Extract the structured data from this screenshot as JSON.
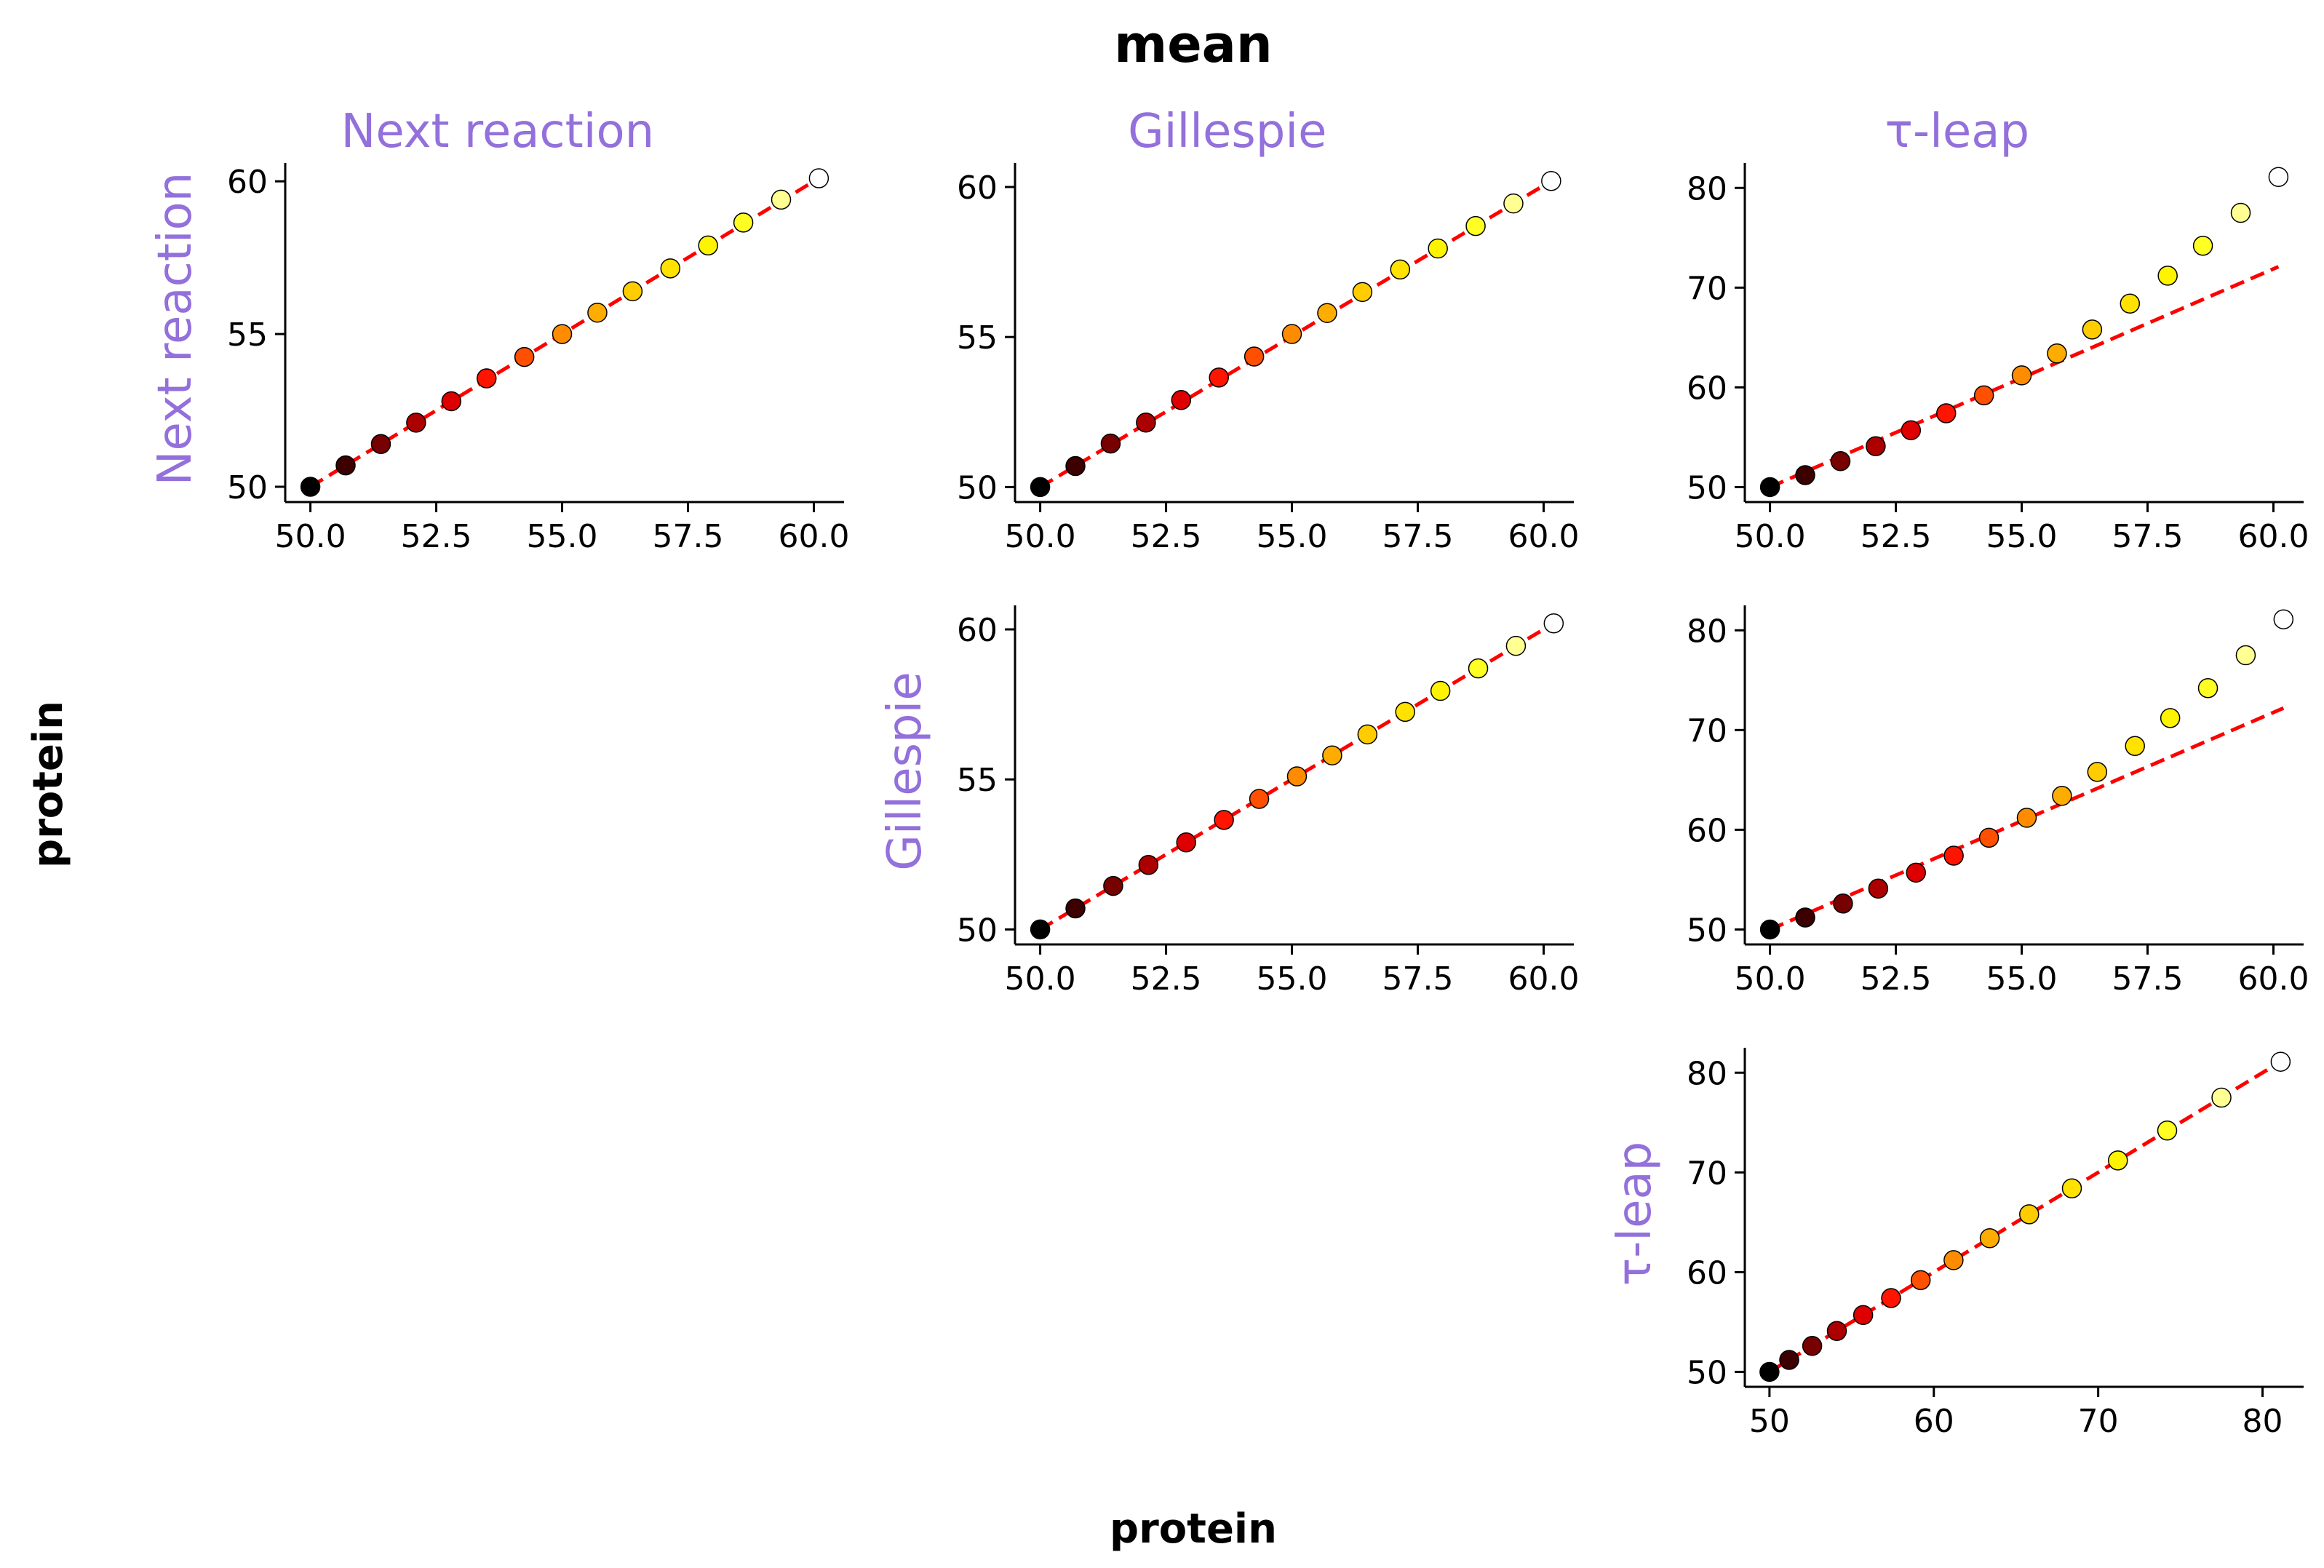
{
  "figure": {
    "title": "mean",
    "xlabel": "protein",
    "ylabel": "protein",
    "label_color": "#9370DB",
    "identity_line_color": "#ff0000",
    "colormap": [
      "#000000",
      "#8b0000",
      "#ff0000",
      "#ff8c00",
      "#ffd700",
      "#ffff00",
      "#ffffff"
    ]
  },
  "chart_data": [
    {
      "type": "scatter",
      "col_title": "Next reaction",
      "row_title": "Next reaction",
      "xlim": [
        49.5,
        60.6
      ],
      "ylim": [
        49.5,
        60.6
      ],
      "xticks": [
        50,
        52.5,
        55,
        57.5,
        60
      ],
      "xtick_labels": [
        "50.0",
        "52.5",
        "55.0",
        "57.5",
        "60.0"
      ],
      "yticks": [
        50,
        55,
        60
      ],
      "ytick_labels": [
        "50",
        "55",
        "60"
      ],
      "x": [
        50.0,
        50.7,
        51.4,
        52.1,
        52.8,
        53.5,
        54.25,
        55.0,
        55.7,
        56.4,
        57.15,
        57.9,
        58.6,
        59.35,
        60.1
      ],
      "y": [
        50.0,
        50.7,
        51.4,
        52.1,
        52.8,
        53.55,
        54.25,
        55.0,
        55.7,
        56.4,
        57.15,
        57.9,
        58.65,
        59.4,
        60.1
      ],
      "identity": [
        [
          50.0,
          50.0
        ],
        [
          60.1,
          60.1
        ]
      ]
    },
    {
      "type": "scatter",
      "col_title": "Gillespie",
      "row_title": "",
      "xlim": [
        49.5,
        60.6
      ],
      "ylim": [
        49.5,
        60.8
      ],
      "xticks": [
        50,
        52.5,
        55,
        57.5,
        60
      ],
      "xtick_labels": [
        "50.0",
        "52.5",
        "55.0",
        "57.5",
        "60.0"
      ],
      "yticks": [
        50,
        55,
        60
      ],
      "ytick_labels": [
        "50",
        "55",
        "60"
      ],
      "x": [
        50.0,
        50.7,
        51.4,
        52.1,
        52.8,
        53.55,
        54.25,
        55.0,
        55.7,
        56.4,
        57.15,
        57.9,
        58.65,
        59.4,
        60.15
      ],
      "y": [
        50.0,
        50.7,
        51.45,
        52.15,
        52.9,
        53.65,
        54.35,
        55.1,
        55.8,
        56.5,
        57.25,
        57.95,
        58.7,
        59.45,
        60.2
      ],
      "identity": [
        [
          50.0,
          50.0
        ],
        [
          60.15,
          60.2
        ]
      ]
    },
    {
      "type": "scatter",
      "col_title": "τ-leap",
      "row_title": "",
      "xlim": [
        49.5,
        60.6
      ],
      "ylim": [
        48.5,
        82.5
      ],
      "xticks": [
        50,
        52.5,
        55,
        57.5,
        60
      ],
      "xtick_labels": [
        "50.0",
        "52.5",
        "55.0",
        "57.5",
        "60.0"
      ],
      "yticks": [
        50,
        60,
        70,
        80
      ],
      "ytick_labels": [
        "50",
        "60",
        "70",
        "80"
      ],
      "x": [
        50.0,
        50.7,
        51.4,
        52.1,
        52.8,
        53.5,
        54.25,
        55.0,
        55.7,
        56.4,
        57.15,
        57.9,
        58.6,
        59.35,
        60.1
      ],
      "y": [
        50.0,
        51.2,
        52.6,
        54.1,
        55.7,
        57.4,
        59.2,
        61.2,
        63.4,
        65.8,
        68.4,
        71.2,
        74.2,
        77.5,
        81.1
      ],
      "identity": [
        [
          50.0,
          50.0
        ],
        [
          60.1,
          72.1
        ]
      ]
    },
    {
      "type": "scatter",
      "col_title": "",
      "row_title": "Gillespie",
      "xlim": [
        49.5,
        60.6
      ],
      "ylim": [
        49.5,
        60.8
      ],
      "xticks": [
        50,
        52.5,
        55,
        57.5,
        60
      ],
      "xtick_labels": [
        "50.0",
        "52.5",
        "55.0",
        "57.5",
        "60.0"
      ],
      "yticks": [
        50,
        55,
        60
      ],
      "ytick_labels": [
        "50",
        "55",
        "60"
      ],
      "x": [
        50.0,
        50.7,
        51.45,
        52.15,
        52.9,
        53.65,
        54.35,
        55.1,
        55.8,
        56.5,
        57.25,
        57.95,
        58.7,
        59.45,
        60.2
      ],
      "y": [
        50.0,
        50.7,
        51.45,
        52.15,
        52.9,
        53.65,
        54.35,
        55.1,
        55.8,
        56.5,
        57.25,
        57.95,
        58.7,
        59.45,
        60.2
      ],
      "identity": [
        [
          50.0,
          50.0
        ],
        [
          60.2,
          60.2
        ]
      ]
    },
    {
      "type": "scatter",
      "col_title": "",
      "row_title": "",
      "xlim": [
        49.5,
        60.6
      ],
      "ylim": [
        48.5,
        82.5
      ],
      "xticks": [
        50,
        52.5,
        55,
        57.5,
        60
      ],
      "xtick_labels": [
        "50.0",
        "52.5",
        "55.0",
        "57.5",
        "60.0"
      ],
      "yticks": [
        50,
        60,
        70,
        80
      ],
      "ytick_labels": [
        "50",
        "60",
        "70",
        "80"
      ],
      "x": [
        50.0,
        50.7,
        51.45,
        52.15,
        52.9,
        53.65,
        54.35,
        55.1,
        55.8,
        56.5,
        57.25,
        57.95,
        58.7,
        59.45,
        60.2
      ],
      "y": [
        50.0,
        51.2,
        52.6,
        54.1,
        55.7,
        57.4,
        59.2,
        61.2,
        63.4,
        65.8,
        68.4,
        71.2,
        74.2,
        77.5,
        81.1
      ],
      "identity": [
        [
          50.0,
          50.0
        ],
        [
          60.2,
          72.2
        ]
      ]
    },
    {
      "type": "scatter",
      "col_title": "",
      "row_title": "τ-leap",
      "xlim": [
        48.5,
        82.5
      ],
      "ylim": [
        48.5,
        82.5
      ],
      "xticks": [
        50,
        60,
        70,
        80
      ],
      "xtick_labels": [
        "50",
        "60",
        "70",
        "80"
      ],
      "yticks": [
        50,
        60,
        70,
        80
      ],
      "ytick_labels": [
        "50",
        "60",
        "70",
        "80"
      ],
      "x": [
        50.0,
        51.2,
        52.6,
        54.1,
        55.7,
        57.4,
        59.2,
        61.2,
        63.4,
        65.8,
        68.4,
        71.2,
        74.2,
        77.5,
        81.1
      ],
      "y": [
        50.0,
        51.2,
        52.6,
        54.1,
        55.7,
        57.4,
        59.2,
        61.2,
        63.4,
        65.8,
        68.4,
        71.2,
        74.2,
        77.5,
        81.1
      ],
      "identity": [
        [
          50.0,
          50.0
        ],
        [
          81.1,
          81.1
        ]
      ]
    }
  ]
}
